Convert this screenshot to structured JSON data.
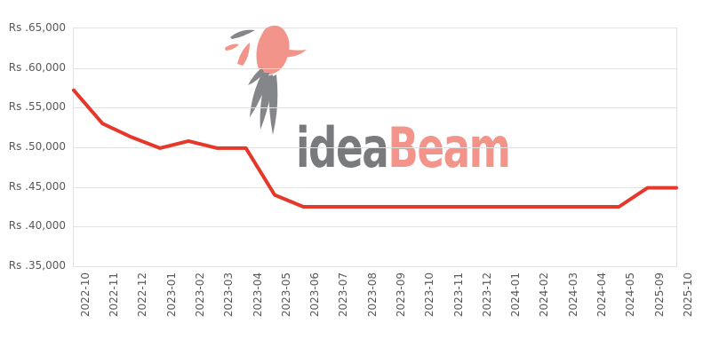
{
  "chart_data": {
    "type": "line",
    "title": "",
    "xlabel": "",
    "ylabel": "",
    "x": [
      "2022-10",
      "2022-11",
      "2022-12",
      "2023-01",
      "2023-02",
      "2023-03",
      "2023-04",
      "2023-05",
      "2023-06",
      "2023-07",
      "2023-08",
      "2023-09",
      "2023-10",
      "2023-11",
      "2023-12",
      "2024-01",
      "2024-02",
      "2024-03",
      "2024-04",
      "2024-05",
      "2025-09",
      "2025-10"
    ],
    "values": [
      57200,
      53000,
      51300,
      49900,
      50800,
      49900,
      49900,
      44000,
      42500,
      42500,
      42500,
      42500,
      42500,
      42500,
      42500,
      42500,
      42500,
      42500,
      42500,
      42500,
      44900,
      44900
    ],
    "y_ticks": [
      65000,
      60000,
      55000,
      50000,
      45000,
      40000,
      35000
    ],
    "y_tick_labels": [
      "Rs .65,000",
      "Rs .60,000",
      "Rs .55,000",
      "Rs .50,000",
      "Rs .45,000",
      "Rs .40,000",
      "Rs .35,000"
    ],
    "ylim": [
      35000,
      65000
    ],
    "grid": "horizontal-only",
    "legend": "none",
    "line_color": "#e6382a",
    "line_width": 4
  },
  "watermark": {
    "brand_first": "idea",
    "brand_second": "Beam",
    "logo_icon": "hummingbird-logo",
    "gray": "#797a7d",
    "salmon": "#f2948a"
  },
  "colors": {
    "grid": "#e2e2e2",
    "axis_text": "#58585a",
    "background": "#ffffff"
  }
}
